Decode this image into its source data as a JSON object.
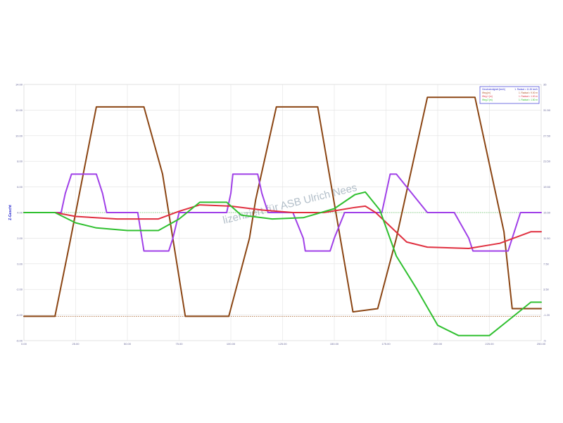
{
  "chart_data": {
    "type": "line",
    "ylabel": "Z-Gescht",
    "x_ticks": [
      "0.00",
      "25.00",
      "50.00",
      "75.00",
      "100.00",
      "125.00",
      "150.00",
      "175.00",
      "200.00",
      "225.00",
      "250.00"
    ],
    "y_left_ticks": [
      "14.00",
      "12.00",
      "10.00",
      "8.00",
      "6.00",
      "4.00",
      "2.00",
      "0.00",
      "-2.00",
      "-4.00",
      "-6.00"
    ],
    "y_right_ticks": [
      "35",
      "31.50",
      "27.50",
      "23.50",
      "19.50",
      "15.50",
      "11.50",
      "7.50",
      "3.50",
      "-1.20",
      "-5"
    ],
    "xlim": [
      0,
      250
    ],
    "ylim": [
      -6,
      14
    ],
    "grid": true,
    "legend_placement": "top-right",
    "watermark": "lizenziert für ASB Ulrich Nees",
    "series": [
      {
        "color": "#8b4513",
        "axis": "right",
        "x": [
          0,
          15,
          22,
          35,
          58,
          67,
          78,
          99,
          100,
          109,
          112,
          122,
          142,
          159,
          171,
          180,
          195,
          203,
          218,
          232,
          236,
          250
        ],
        "values": [
          -1.2,
          -1.2,
          10,
          31.5,
          31.5,
          21,
          -1.2,
          -1.2,
          0,
          11,
          17,
          31.5,
          31.5,
          -0.5,
          0,
          11,
          33,
          33,
          33,
          12,
          0,
          0
        ]
      },
      {
        "color": "#a040e8",
        "axis": "left",
        "x": [
          0,
          18,
          20,
          23,
          35,
          38,
          40,
          55,
          57,
          58,
          70,
          72,
          75,
          98,
          100,
          101,
          113,
          115,
          118,
          130,
          135,
          136,
          148,
          150,
          155,
          173,
          175,
          177,
          180,
          195,
          198,
          199,
          208,
          215,
          217,
          234,
          237,
          240,
          250
        ],
        "values": [
          4,
          4,
          5.5,
          7,
          7,
          5.5,
          4,
          4,
          2,
          1,
          1,
          2,
          4,
          4,
          5.5,
          7,
          7,
          5.5,
          4,
          4,
          2,
          1,
          1,
          2,
          4,
          4,
          5.5,
          7,
          7,
          4,
          4,
          4,
          4,
          2,
          1,
          1,
          2.5,
          4,
          4
        ]
      },
      {
        "color": "#e03040",
        "axis": "left",
        "x": [
          0,
          15,
          25,
          45,
          65,
          75,
          85,
          100,
          115,
          130,
          145,
          160,
          165,
          170,
          185,
          195,
          215,
          230,
          245,
          250
        ],
        "values": [
          4,
          4,
          3.7,
          3.5,
          3.5,
          4.1,
          4.6,
          4.5,
          4.2,
          4.0,
          4.0,
          4.4,
          4.5,
          4.0,
          1.7,
          1.3,
          1.2,
          1.6,
          2.5,
          2.5
        ]
      },
      {
        "color": "#30c030",
        "axis": "left",
        "x": [
          0,
          15,
          25,
          35,
          50,
          65,
          75,
          85,
          98,
          105,
          120,
          135,
          150,
          160,
          165,
          172,
          180,
          190,
          200,
          210,
          225,
          235,
          245,
          250
        ],
        "values": [
          4,
          4,
          3.2,
          2.8,
          2.6,
          2.6,
          3.5,
          4.8,
          4.8,
          3.8,
          3.5,
          3.6,
          4.3,
          5.4,
          5.6,
          4.2,
          0.6,
          -2.0,
          -4.8,
          -5.6,
          -5.6,
          -4.3,
          -3.0,
          -3.0
        ]
      }
    ],
    "legend": {
      "entries": [
        {
          "label": "Geschwindigkeit [km/h]",
          "value": "1. Radsat = 11.30 km/h",
          "color": "#2a2ad0"
        },
        {
          "label": "Weg [m]",
          "value": "1. Radsat = 9.00 m",
          "color": "#b05020"
        },
        {
          "label": "Weg 1 [m]",
          "value": "1. Radsat = 1.00 m",
          "color": "#e03040"
        },
        {
          "label": "Weg 2 [m]",
          "value": "1. Radsat = 1.50 m",
          "color": "#30c030"
        }
      ]
    }
  }
}
